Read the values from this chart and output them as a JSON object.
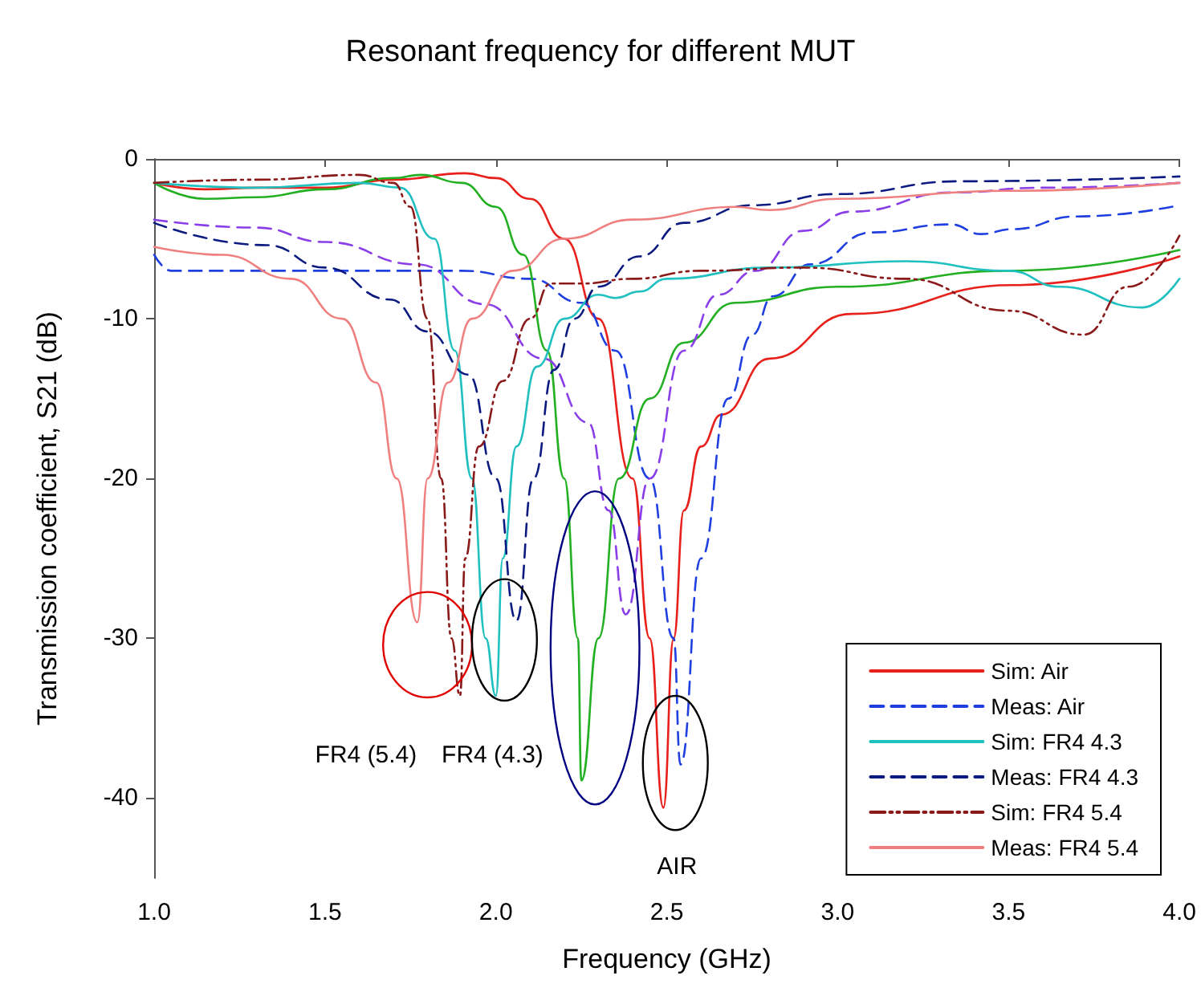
{
  "chart_data": {
    "type": "line",
    "title": "Resonant frequency for different MUT",
    "xlabel": "Frequency (GHz)",
    "ylabel": "Transmission coefficient, S21 (dB)",
    "xlim": [
      1,
      4
    ],
    "ylim": [
      -45,
      0
    ],
    "xticks": [
      {
        "value": 1,
        "label": "1.0"
      },
      {
        "value": 1.5,
        "label": "1.5"
      },
      {
        "value": 2,
        "label": "2.0"
      },
      {
        "value": 2.5,
        "label": "2.5"
      },
      {
        "value": 3,
        "label": "3.0"
      },
      {
        "value": 3.5,
        "label": "3.5"
      },
      {
        "value": 4,
        "label": "4.0"
      }
    ],
    "yticks": [
      0,
      -10,
      -20,
      -30,
      -40
    ],
    "grid": false,
    "legend": "bottom right",
    "marker": "none",
    "annotations": [
      "FR4 (5.4)",
      "FR4 (4.3)",
      "AIR"
    ],
    "series": [
      {
        "name": "Sim: Air",
        "color": "#e8201c",
        "line_style": "solid",
        "x": [
          1.0,
          1.15,
          1.3,
          1.5,
          1.7,
          1.91,
          2.0,
          2.1,
          2.2,
          2.3,
          2.4,
          2.45,
          2.49,
          2.52,
          2.55,
          2.6,
          2.66,
          2.8,
          3.04,
          3.51,
          4.0
        ],
        "values": [
          -1.5,
          -1.9,
          -1.8,
          -1.8,
          -1.3,
          -0.9,
          -1.2,
          -2.5,
          -5,
          -10,
          -20,
          -30,
          -40.6,
          -30,
          -22,
          -18,
          -16,
          -12.5,
          -9.7,
          -7.9,
          -6.1
        ]
      },
      {
        "name": "Meas: Air",
        "color": "#1f3fe0",
        "line_style": "dashed",
        "x": [
          1.0,
          1.05,
          1.5,
          1.9,
          2.1,
          2.25,
          2.35,
          2.45,
          2.52,
          2.54,
          2.6,
          2.68,
          2.75,
          2.81,
          2.92,
          3.1,
          3.33,
          3.42,
          3.51,
          3.7,
          4.0
        ],
        "values": [
          -6,
          -7,
          -7,
          -7,
          -7.5,
          -9,
          -12,
          -20,
          -30,
          -37.9,
          -25,
          -15,
          -11,
          -8.6,
          -6.6,
          -4.6,
          -4.1,
          -4.7,
          -4.4,
          -3.6,
          -2.9
        ]
      },
      {
        "color": "#22b022",
        "line_style": "solid",
        "x": [
          1.0,
          1.15,
          1.3,
          1.5,
          1.7,
          1.78,
          1.9,
          2.0,
          2.08,
          2.15,
          2.2,
          2.24,
          2.25,
          2.3,
          2.36,
          2.45,
          2.55,
          2.7,
          3.0,
          3.5,
          4.0
        ],
        "values": [
          -1.5,
          -2.5,
          -2.4,
          -1.9,
          -1.2,
          -1,
          -1.5,
          -3,
          -6,
          -12,
          -20,
          -30,
          -38.9,
          -30,
          -20,
          -15,
          -11.5,
          -9,
          -8,
          -7,
          -5.7
        ]
      },
      {
        "color": "#8a3ee8",
        "line_style": "dashed",
        "x": [
          1.0,
          1.3,
          1.5,
          1.77,
          1.97,
          2.14,
          2.27,
          2.33,
          2.38,
          2.45,
          2.55,
          2.65,
          2.76,
          2.9,
          3.04,
          3.34,
          3.6,
          4.0
        ],
        "values": [
          -3.8,
          -4.3,
          -5.2,
          -6.6,
          -9.1,
          -12.5,
          -16.5,
          -22,
          -28.5,
          -20,
          -12,
          -8.5,
          -7,
          -4.5,
          -3.3,
          -2.1,
          -1.8,
          -1.5
        ]
      },
      {
        "name": "Sim: FR4 4.3",
        "color": "#20c0c0",
        "line_style": "solid",
        "x": [
          1.0,
          1.3,
          1.6,
          1.72,
          1.82,
          1.88,
          1.93,
          1.97,
          2.0,
          2.02,
          2.06,
          2.12,
          2.2,
          2.3,
          2.35,
          2.42,
          2.5,
          2.8,
          3.2,
          3.5,
          3.65,
          3.89,
          4.0
        ],
        "values": [
          -1.5,
          -1.8,
          -1.5,
          -1.8,
          -5,
          -12,
          -20,
          -30,
          -33.6,
          -25,
          -18,
          -13,
          -10,
          -8.5,
          -8.7,
          -8.3,
          -7.5,
          -6.8,
          -6.4,
          -7,
          -8,
          -9.3,
          -7.5
        ]
      },
      {
        "name": "Meas: FR4 4.3",
        "color": "#0a1a80",
        "line_style": "dashed",
        "x": [
          1.0,
          1.33,
          1.5,
          1.69,
          1.8,
          1.92,
          2.0,
          2.06,
          2.11,
          2.17,
          2.23,
          2.3,
          2.42,
          2.55,
          2.75,
          3.0,
          3.36,
          4.0
        ],
        "values": [
          -4,
          -5.4,
          -6.8,
          -8.8,
          -10.8,
          -13.5,
          -20,
          -28.9,
          -20,
          -13.2,
          -10,
          -8,
          -6.1,
          -4,
          -2.9,
          -2.2,
          -1.4,
          -1.1
        ]
      },
      {
        "name": "Sim: FR4 5.4",
        "color": "#8a1a1a",
        "line_style": "dotted",
        "x": [
          1.0,
          1.3,
          1.6,
          1.7,
          1.75,
          1.8,
          1.84,
          1.87,
          1.895,
          1.91,
          1.95,
          2.02,
          2.1,
          2.16,
          2.25,
          2.4,
          2.6,
          2.9,
          3.2,
          3.5,
          3.72,
          3.85,
          4.0
        ],
        "values": [
          -1.5,
          -1.3,
          -1,
          -1.5,
          -3,
          -10,
          -20,
          -30,
          -33.6,
          -25,
          -18,
          -13.9,
          -10,
          -7.8,
          -7.8,
          -7.5,
          -7,
          -6.8,
          -7.5,
          -9.5,
          -11,
          -8,
          -4.8
        ]
      },
      {
        "name": "Meas: FR4 5.4",
        "color": "#f08080",
        "line_style": "solid",
        "x": [
          1.0,
          1.2,
          1.4,
          1.55,
          1.65,
          1.71,
          1.77,
          1.8,
          1.86,
          1.93,
          2.05,
          2.2,
          2.4,
          2.7,
          2.8,
          3.0,
          3.5,
          4.0
        ],
        "values": [
          -5.5,
          -6,
          -7.5,
          -10,
          -14,
          -20,
          -29,
          -20,
          -14,
          -10,
          -7,
          -5,
          -3.8,
          -3,
          -3.2,
          -2.5,
          -2,
          -1.5
        ]
      }
    ]
  }
}
